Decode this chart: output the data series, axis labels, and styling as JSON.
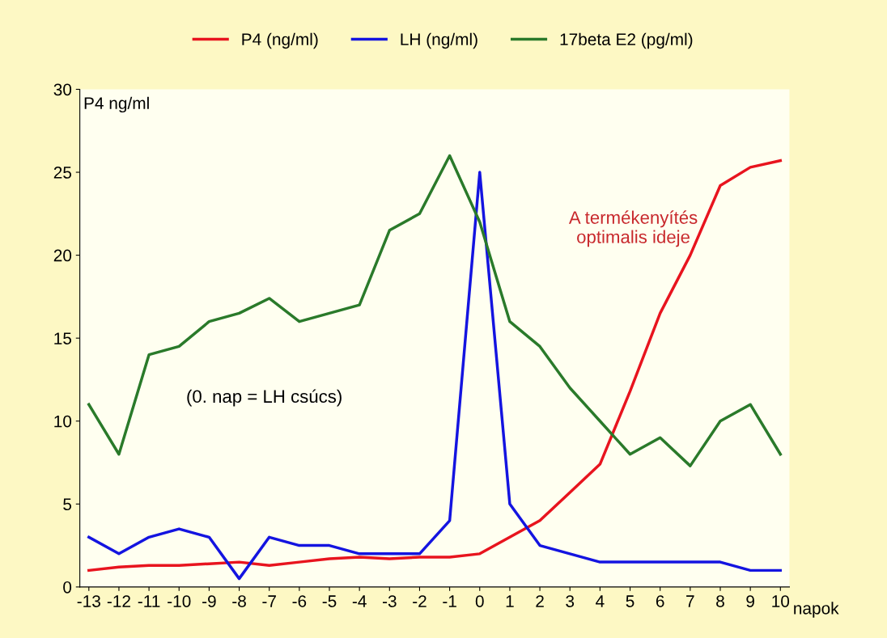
{
  "chart_data": {
    "type": "line",
    "ylabel": "P4 ng/ml",
    "xlabel": "napok",
    "categories": [
      "-13",
      "-12",
      "-11",
      "-10",
      "-9",
      "-8",
      "-7",
      "-6",
      "-5",
      "-4",
      "-3",
      "-2",
      "-1",
      "0",
      "1",
      "2",
      "3",
      "4",
      "5",
      "6",
      "7",
      "8",
      "9",
      "10"
    ],
    "series": [
      {
        "name": "P4 (ng/ml)",
        "color": "#e8141e",
        "values": [
          1.0,
          1.2,
          1.3,
          1.3,
          1.4,
          1.5,
          1.3,
          1.5,
          1.7,
          1.8,
          1.7,
          1.8,
          1.8,
          2.0,
          3.0,
          4.0,
          5.7,
          7.4,
          11.8,
          16.5,
          20,
          24.2,
          25.3,
          25.7
        ]
      },
      {
        "name": "LH (ng/ml)",
        "color": "#1414e0",
        "values": [
          3.0,
          2.0,
          3.0,
          3.5,
          3.0,
          0.5,
          3.0,
          2.5,
          2.5,
          2.0,
          2.0,
          2.0,
          4.0,
          25.0,
          5.0,
          2.5,
          2.0,
          1.5,
          1.5,
          1.5,
          1.5,
          1.5,
          1.0,
          1.0
        ]
      },
      {
        "name": "17beta E2 (pg/ml)",
        "color": "#2a7a2a",
        "values": [
          11,
          8,
          14,
          14.5,
          16,
          16.5,
          17.4,
          16,
          16.5,
          17,
          21.5,
          22.5,
          26,
          22,
          16,
          14.5,
          12,
          10,
          8,
          9,
          7.3,
          10,
          11,
          8
        ]
      }
    ],
    "ylim": [
      0,
      30
    ],
    "yticks": [
      0,
      5,
      10,
      15,
      20,
      25,
      30
    ],
    "grid": false,
    "legend": "top",
    "marker": "none",
    "line_style": "solid",
    "annotations": [
      "(0. nap = LH csúcs)",
      "A termékenyítés\noptimalis ideje"
    ]
  }
}
